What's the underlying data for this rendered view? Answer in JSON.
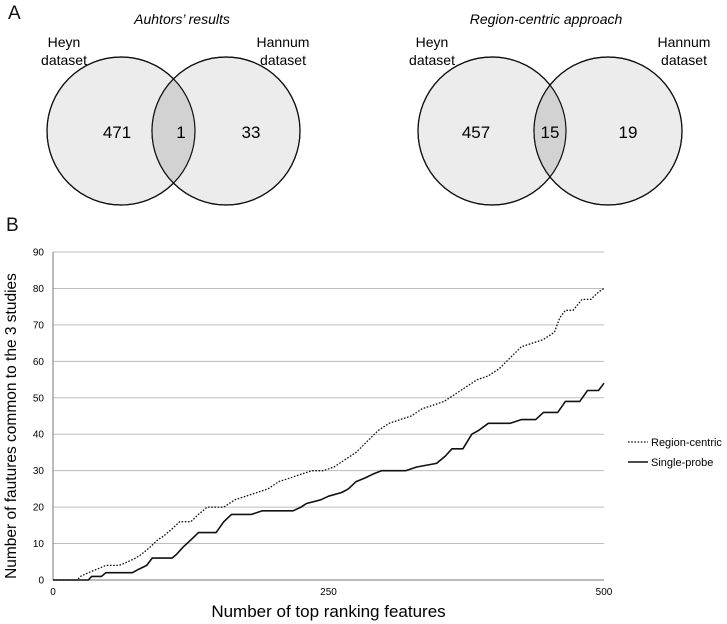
{
  "panel_a": {
    "letter": "A",
    "venns": [
      {
        "title": "Auhtors’ results",
        "left_label_line1": "Heyn",
        "left_label_line2": "dataset",
        "right_label_line1": "Hannum",
        "right_label_line2": "dataset",
        "left_only": "471",
        "overlap": "1",
        "right_only": "33"
      },
      {
        "title": "Region-centric approach",
        "left_label_line1": "Heyn",
        "left_label_line2": "dataset",
        "right_label_line1": "Hannum",
        "right_label_line2": "dataset",
        "left_only": "457",
        "overlap": "15",
        "right_only": "19"
      }
    ]
  },
  "panel_b": {
    "letter": "B"
  },
  "colors": {
    "circle_fill": "#ececec",
    "overlap_fill": "#d2d2d2",
    "grid": "#bdbdbd",
    "line": "#111111"
  },
  "chart_data": [
    {
      "type": "venn",
      "title": "Auhtors’ results",
      "sets": [
        "Heyn dataset",
        "Hannum dataset"
      ],
      "values": {
        "Heyn only": 471,
        "both": 1,
        "Hannum only": 33
      }
    },
    {
      "type": "venn",
      "title": "Region-centric approach",
      "sets": [
        "Heyn dataset",
        "Hannum dataset"
      ],
      "values": {
        "Heyn only": 457,
        "both": 15,
        "Hannum only": 19
      }
    },
    {
      "type": "line",
      "title": "",
      "xlabel": "Number of top ranking features",
      "ylabel": "Number of fautures common to the 3 studies",
      "xlim": [
        0,
        500
      ],
      "ylim": [
        0,
        90
      ],
      "xticks": [
        0,
        250,
        500
      ],
      "yticks": [
        0,
        10,
        20,
        30,
        40,
        50,
        60,
        70,
        80,
        90
      ],
      "grid": true,
      "legend_position": "right",
      "series": [
        {
          "name": "Region-centric",
          "style": "dotted",
          "points": [
            [
              0,
              0
            ],
            [
              22,
              0
            ],
            [
              25,
              1
            ],
            [
              32,
              2
            ],
            [
              40,
              3
            ],
            [
              48,
              4
            ],
            [
              60,
              4
            ],
            [
              68,
              5
            ],
            [
              75,
              6
            ],
            [
              80,
              7
            ],
            [
              88,
              9
            ],
            [
              95,
              11
            ],
            [
              100,
              12
            ],
            [
              108,
              14
            ],
            [
              115,
              16
            ],
            [
              125,
              16
            ],
            [
              132,
              18
            ],
            [
              140,
              20
            ],
            [
              155,
              20
            ],
            [
              165,
              22
            ],
            [
              175,
              23
            ],
            [
              185,
              24
            ],
            [
              195,
              25
            ],
            [
              205,
              27
            ],
            [
              215,
              28
            ],
            [
              225,
              29
            ],
            [
              235,
              30
            ],
            [
              245,
              30
            ],
            [
              255,
              31
            ],
            [
              265,
              33
            ],
            [
              275,
              35
            ],
            [
              285,
              38
            ],
            [
              295,
              41
            ],
            [
              305,
              43
            ],
            [
              315,
              44
            ],
            [
              325,
              45
            ],
            [
              335,
              47
            ],
            [
              345,
              48
            ],
            [
              355,
              49
            ],
            [
              365,
              51
            ],
            [
              375,
              53
            ],
            [
              385,
              55
            ],
            [
              395,
              56
            ],
            [
              405,
              58
            ],
            [
              415,
              61
            ],
            [
              425,
              64
            ],
            [
              435,
              65
            ],
            [
              445,
              66
            ],
            [
              455,
              68
            ],
            [
              460,
              72
            ],
            [
              465,
              74
            ],
            [
              472,
              74
            ],
            [
              480,
              77
            ],
            [
              488,
              77
            ],
            [
              495,
              79
            ],
            [
              500,
              80
            ]
          ]
        },
        {
          "name": "Single-probe",
          "style": "solid",
          "points": [
            [
              0,
              0
            ],
            [
              32,
              0
            ],
            [
              35,
              1
            ],
            [
              44,
              1
            ],
            [
              48,
              2
            ],
            [
              72,
              2
            ],
            [
              78,
              3
            ],
            [
              85,
              4
            ],
            [
              90,
              6
            ],
            [
              108,
              6
            ],
            [
              112,
              7
            ],
            [
              118,
              9
            ],
            [
              125,
              11
            ],
            [
              132,
              13
            ],
            [
              148,
              13
            ],
            [
              155,
              16
            ],
            [
              162,
              18
            ],
            [
              180,
              18
            ],
            [
              190,
              19
            ],
            [
              218,
              19
            ],
            [
              225,
              20
            ],
            [
              230,
              21
            ],
            [
              243,
              22
            ],
            [
              250,
              23
            ],
            [
              262,
              24
            ],
            [
              268,
              25
            ],
            [
              275,
              27
            ],
            [
              283,
              28
            ],
            [
              290,
              29
            ],
            [
              298,
              30
            ],
            [
              320,
              30
            ],
            [
              330,
              31
            ],
            [
              348,
              32
            ],
            [
              356,
              34
            ],
            [
              362,
              36
            ],
            [
              372,
              36
            ],
            [
              380,
              40
            ],
            [
              386,
              41
            ],
            [
              395,
              43
            ],
            [
              415,
              43
            ],
            [
              425,
              44
            ],
            [
              438,
              44
            ],
            [
              445,
              46
            ],
            [
              458,
              46
            ],
            [
              465,
              49
            ],
            [
              478,
              49
            ],
            [
              485,
              52
            ],
            [
              495,
              52
            ],
            [
              500,
              54
            ]
          ]
        }
      ]
    }
  ]
}
